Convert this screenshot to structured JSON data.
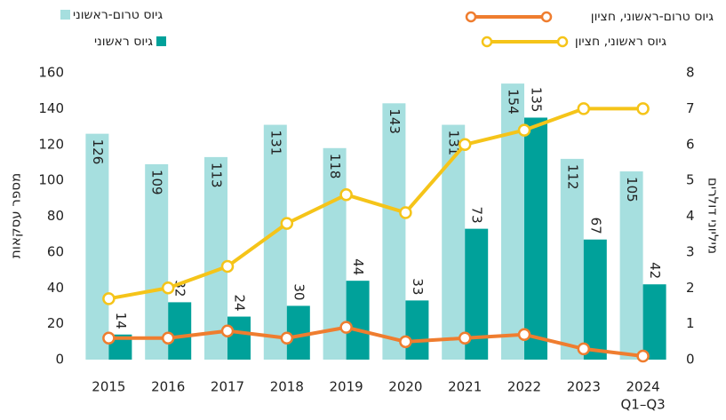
{
  "chart_data": {
    "type": "bar",
    "categories": [
      "2015",
      "2016",
      "2017",
      "2018",
      "2019",
      "2020",
      "2021",
      "2022",
      "2023",
      "2024"
    ],
    "annotation": "Q1–Q3",
    "y_label": "מספר עסקאות",
    "y2_label": "מיליוני דולרים",
    "ylim": [
      0,
      160
    ],
    "yticks": [
      0,
      20,
      40,
      60,
      80,
      100,
      120,
      140,
      160
    ],
    "y2lim": [
      0,
      8
    ],
    "y2ticks": [
      0,
      1,
      2,
      3,
      4,
      5,
      6,
      7,
      8
    ],
    "grid": false,
    "series": [
      {
        "name": "גיוס טרום-ראשוני",
        "type": "bar",
        "color": "#a6dfdf",
        "values": [
          126,
          109,
          113,
          131,
          118,
          143,
          131,
          154,
          112,
          105
        ]
      },
      {
        "name": "גיוס ראשוני",
        "type": "bar",
        "color": "#00a19a",
        "values": [
          14,
          32,
          24,
          30,
          44,
          33,
          73,
          135,
          67,
          42
        ]
      },
      {
        "name": "גיוס טרום-ראשוני, חציון",
        "type": "line",
        "axis": "y2",
        "color": "#ef7d2f",
        "values": [
          0.6,
          0.6,
          0.8,
          0.6,
          0.9,
          0.5,
          0.6,
          0.7,
          0.3,
          0.1
        ]
      },
      {
        "name": "גיוס ראשוני, חציון",
        "type": "line",
        "axis": "y2",
        "color": "#f5c419",
        "values": [
          1.7,
          2.0,
          2.6,
          3.8,
          4.6,
          4.1,
          6.0,
          6.4,
          7.0,
          7.0
        ]
      }
    ]
  }
}
